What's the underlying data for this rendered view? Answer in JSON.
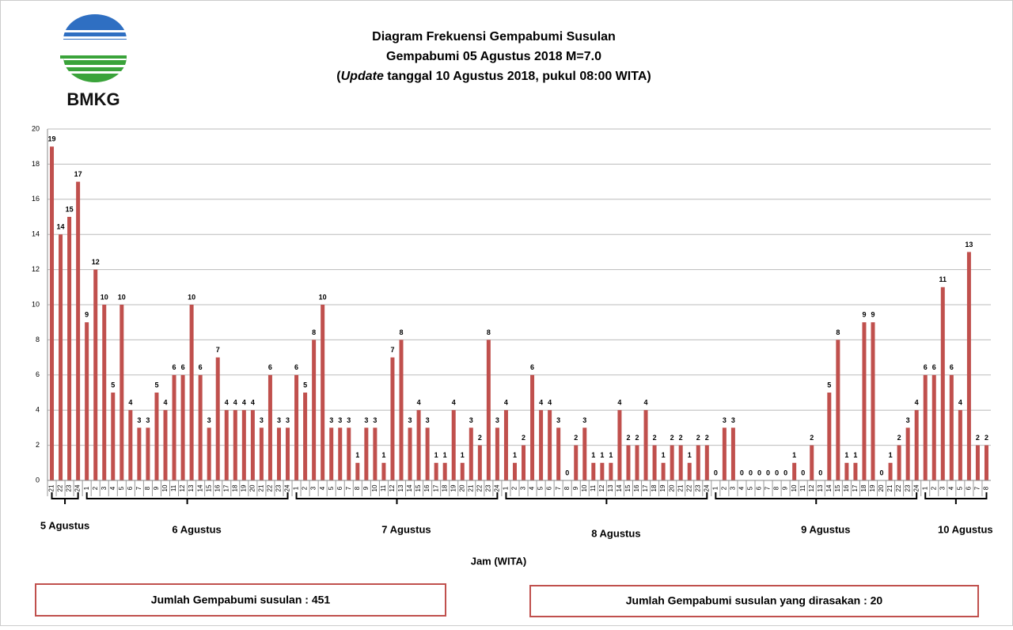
{
  "logo_text": "BMKG",
  "chart_data": {
    "type": "bar",
    "title": "Diagram Frekuensi Gempabumi Susulan",
    "subtitle": "Gempabumi 05 Agustus 2018 M=7.0",
    "update_parts": [
      "(",
      "Update",
      " tanggal 10 Agustus 2018, pukul 08:00 WITA)"
    ],
    "xlabel": "Jam (WITA)",
    "color": "#c0504d",
    "ylim": [
      0,
      20
    ],
    "yticks": [
      0,
      2,
      4,
      6,
      8,
      10,
      12,
      14,
      16,
      18,
      20
    ],
    "grid": true,
    "groups": [
      {
        "label": "5 Agustus",
        "categories": [
          "21",
          "22",
          "23",
          "24"
        ],
        "values": [
          19,
          14,
          15,
          17
        ]
      },
      {
        "label": "6 Agustus",
        "categories": [
          "1",
          "2",
          "3",
          "4",
          "5",
          "6",
          "7",
          "8",
          "9",
          "10",
          "11",
          "12",
          "13",
          "14",
          "15",
          "16",
          "17",
          "18",
          "19",
          "20",
          "21",
          "22",
          "23",
          "24"
        ],
        "values": [
          9,
          12,
          10,
          5,
          10,
          4,
          3,
          3,
          5,
          4,
          6,
          6,
          10,
          6,
          3,
          7,
          4,
          4,
          4,
          4,
          3,
          6,
          3,
          3
        ]
      },
      {
        "label": "7 Agustus",
        "categories": [
          "1",
          "2",
          "3",
          "4",
          "5",
          "6",
          "7",
          "8",
          "9",
          "10",
          "11",
          "12",
          "13",
          "14",
          "15",
          "16",
          "17",
          "18",
          "19",
          "20",
          "21",
          "22",
          "23",
          "24"
        ],
        "values": [
          6,
          5,
          8,
          10,
          3,
          3,
          3,
          1,
          3,
          3,
          1,
          7,
          8,
          3,
          4,
          3,
          1,
          1,
          4,
          1,
          3,
          2,
          8,
          3
        ]
      },
      {
        "label": "8 Agustus",
        "categories": [
          "1",
          "2",
          "3",
          "4",
          "5",
          "6",
          "7",
          "8",
          "9",
          "10",
          "11",
          "12",
          "13",
          "14",
          "15",
          "16",
          "17",
          "18",
          "19",
          "20",
          "21",
          "22",
          "23",
          "24"
        ],
        "values": [
          4,
          1,
          2,
          6,
          4,
          4,
          3,
          0,
          2,
          3,
          1,
          1,
          1,
          4,
          2,
          2,
          4,
          2,
          1,
          2,
          2,
          1,
          2,
          2
        ]
      },
      {
        "label": "9 Agustus",
        "categories": [
          "1",
          "2",
          "3",
          "4",
          "5",
          "6",
          "7",
          "8",
          "9",
          "10",
          "11",
          "12",
          "13",
          "14",
          "15",
          "16",
          "17",
          "18",
          "19",
          "20",
          "21",
          "22",
          "23",
          "24"
        ],
        "values": [
          0,
          3,
          3,
          0,
          0,
          0,
          0,
          0,
          0,
          1,
          0,
          2,
          0,
          5,
          8,
          1,
          1,
          9,
          9,
          0,
          1,
          2,
          3,
          4
        ]
      },
      {
        "label": "10 Agustus",
        "categories": [
          "1",
          "2",
          "3",
          "4",
          "5",
          "6",
          "7",
          "8"
        ],
        "values": [
          6,
          6,
          11,
          6,
          4,
          13,
          2,
          2
        ]
      }
    ],
    "annotations": [
      "Jumlah Gempabumi  susulan  : 451",
      "Jumlah Gempabumi  susulan  yang  dirasakan  : 20"
    ]
  }
}
